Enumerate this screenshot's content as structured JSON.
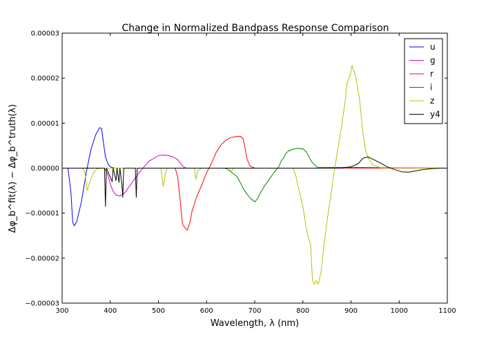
{
  "chart_data": {
    "type": "line",
    "title": "Change in Normalized Bandpass Response Comparison",
    "xlabel": "Wavelength, λ (nm)",
    "ylabel": "Δφ_b^fit(λ) − Δφ_b^truth(λ)",
    "xlim": [
      300,
      1100
    ],
    "ylim": [
      -3e-05,
      3e-05
    ],
    "x_ticks": [
      300,
      400,
      500,
      600,
      700,
      800,
      900,
      1000,
      1100
    ],
    "x_tick_labels": [
      "300",
      "400",
      "500",
      "600",
      "700",
      "800",
      "900",
      "1000",
      "1100"
    ],
    "y_ticks": [
      -3e-05,
      -2e-05,
      -1e-05,
      0,
      1e-05,
      2e-05,
      3e-05
    ],
    "y_tick_labels": [
      "−0.00003",
      "−0.00002",
      "−0.00001",
      "0.00000",
      "0.00001",
      "0.00002",
      "0.00003"
    ],
    "grid": false,
    "legend_position": "top-right",
    "series": [
      {
        "name": "u",
        "color": "#0000ff",
        "x": [
          312,
          318,
          322,
          325,
          330,
          340,
          350,
          360,
          370,
          378,
          382,
          386,
          390,
          395,
          400,
          405,
          410,
          420,
          1100
        ],
        "y": [
          0,
          -5e-06,
          -1.2e-05,
          -1.28e-05,
          -1.2e-05,
          -7.5e-06,
          -1e-06,
          4.2e-06,
          7.5e-06,
          9e-06,
          8.8e-06,
          5.5e-06,
          2.5e-06,
          1e-06,
          3e-07,
          1e-07,
          0,
          0,
          0
        ]
      },
      {
        "name": "g",
        "color": "#cc00cc",
        "x": [
          300,
          388,
          395,
          400,
          405,
          412,
          420,
          430,
          440,
          460,
          480,
          500,
          510,
          520,
          530,
          540,
          550,
          555,
          560,
          1100
        ],
        "y": [
          0,
          0,
          -1.5e-06,
          -3.5e-06,
          -5e-06,
          -6e-06,
          -6.2e-06,
          -5.5e-06,
          -4e-06,
          -1e-06,
          1.5e-06,
          2.8e-06,
          2.9e-06,
          2.8e-06,
          2.5e-06,
          1.9e-06,
          5e-07,
          1e-07,
          0,
          0
        ]
      },
      {
        "name": "r",
        "color": "#ff0000",
        "x": [
          300,
          535,
          540,
          545,
          550,
          555,
          560,
          565,
          570,
          580,
          590,
          600,
          610,
          620,
          630,
          640,
          650,
          660,
          668,
          672,
          676,
          680,
          684,
          690,
          700,
          1100
        ],
        "y": [
          0,
          0,
          -2e-06,
          -7e-06,
          -1.25e-05,
          -1.32e-05,
          -1.38e-05,
          -1.22e-05,
          -9.5e-06,
          -6.2e-06,
          -3.8e-06,
          -1e-06,
          1e-06,
          3.5e-06,
          5.2e-06,
          6.2e-06,
          6.8e-06,
          7e-06,
          7.1e-06,
          7e-06,
          6.5e-06,
          4.5e-06,
          2e-06,
          5e-07,
          0,
          0
        ]
      },
      {
        "name": "i",
        "color": "#008000",
        "x": [
          300,
          638,
          644,
          650,
          658,
          664,
          670,
          676,
          684,
          692,
          700,
          706,
          712,
          720,
          730,
          740,
          750,
          756,
          760,
          764,
          770,
          780,
          790,
          800,
          808,
          814,
          820,
          830,
          1100
        ],
        "y": [
          0,
          0,
          -3e-07,
          -8e-07,
          -1.4e-06,
          -2e-06,
          -3.2e-06,
          -4.5e-06,
          -5.8e-06,
          -6.8e-06,
          -7.5e-06,
          -6.8e-06,
          -5.5e-06,
          -4e-06,
          -2.5e-06,
          -1e-06,
          3e-07,
          1.8e-06,
          2.2e-06,
          3.2e-06,
          3.8e-06,
          4.2e-06,
          4.4e-06,
          4.3e-06,
          3.5e-06,
          2.2e-06,
          1.2e-06,
          2e-07,
          0
        ]
      },
      {
        "name": "z",
        "color": "#bfbf00",
        "x": [
          300,
          342,
          347,
          352,
          358,
          365,
          372,
          380,
          505,
          510,
          514,
          518,
          525,
          540,
          575,
          578,
          582,
          590,
          648,
          651,
          655,
          680,
          780,
          785,
          790,
          800,
          808,
          816,
          820,
          824,
          828,
          832,
          838,
          844,
          850,
          860,
          870,
          880,
          888,
          892,
          898,
          902,
          908,
          912,
          918,
          924,
          930,
          936,
          945,
          960,
          1100
        ],
        "y": [
          0,
          0,
          -8e-07,
          -5e-06,
          -3e-06,
          -1e-06,
          -2e-07,
          0,
          0,
          -4e-06,
          -1.5e-06,
          0,
          0,
          0,
          0,
          -2.5e-06,
          -5e-07,
          0,
          0,
          -1e-06,
          0,
          0,
          0,
          -1.5e-06,
          -4e-06,
          -8.5e-06,
          -1.4e-05,
          -1.7e-05,
          -2.5e-05,
          -2.58e-05,
          -2.5e-05,
          -2.58e-05,
          -2.3e-05,
          -1.7e-05,
          -1.2e-05,
          -4.5e-06,
          2.5e-06,
          9e-06,
          1.5e-05,
          1.9e-05,
          2.05e-05,
          2.28e-05,
          2.1e-05,
          1.9e-05,
          1.5e-05,
          8.5e-06,
          4e-06,
          2.2e-06,
          8e-07,
          1e-07,
          0
        ]
      },
      {
        "name": "y4",
        "color": "#000000",
        "x": [
          300,
          388,
          390,
          392,
          404,
          406,
          412,
          414,
          418,
          420,
          424,
          426,
          428,
          452,
          454,
          456,
          880,
          900,
          915,
          925,
          935,
          945,
          960,
          975,
          990,
          1005,
          1020,
          1035,
          1050,
          1070,
          1090,
          1100
        ],
        "y": [
          0,
          0,
          -8.5e-06,
          0,
          -3e-06,
          0,
          -2.8e-06,
          0,
          -3.2e-06,
          0,
          -3.5e-06,
          -6.5e-06,
          0,
          0,
          -6.5e-06,
          0,
          0,
          3e-07,
          1e-06,
          2.2e-06,
          2.5e-06,
          2e-06,
          1.2e-06,
          3e-07,
          -3e-07,
          -8e-07,
          -9e-07,
          -6e-07,
          -3e-07,
          -1e-07,
          0,
          0
        ]
      }
    ]
  }
}
